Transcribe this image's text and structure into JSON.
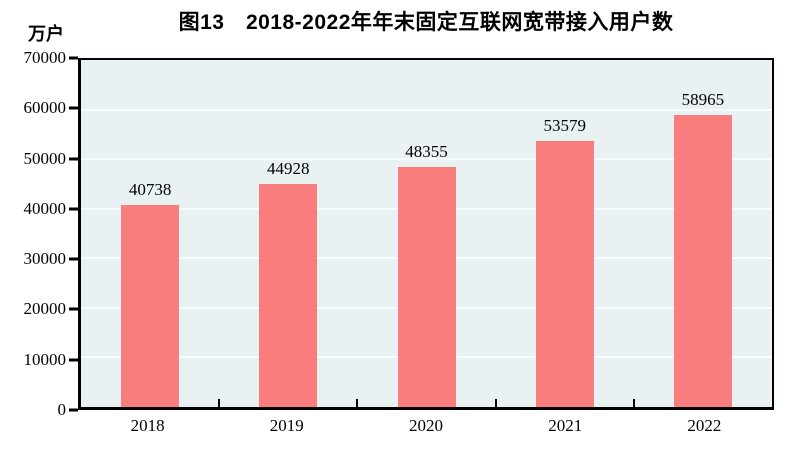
{
  "page": {
    "background": "#ffffff"
  },
  "header": {
    "title": "图13　2018-2022年年末固定互联网宽带接入用户数",
    "unit_label": "万户"
  },
  "chart_data": {
    "type": "bar",
    "title": "图13　2018-2022年年末固定互联网宽带接入用户数",
    "ylabel_unit": "万户",
    "categories": [
      "2018",
      "2019",
      "2020",
      "2021",
      "2022"
    ],
    "values": [
      40738,
      44928,
      48355,
      53579,
      58965
    ],
    "data_labels": [
      "40738",
      "44928",
      "48355",
      "53579",
      "58965"
    ],
    "ylim": [
      0,
      70000
    ],
    "yticks": [
      0,
      10000,
      20000,
      30000,
      40000,
      50000,
      60000,
      70000
    ],
    "grid": "horizontal",
    "legend": "none",
    "colors": {
      "bar": "#fa7d7d",
      "plot_background": "#e9f1f2",
      "gridline": "#f8fcfc",
      "axis": "#000000",
      "text": "#000000"
    }
  }
}
